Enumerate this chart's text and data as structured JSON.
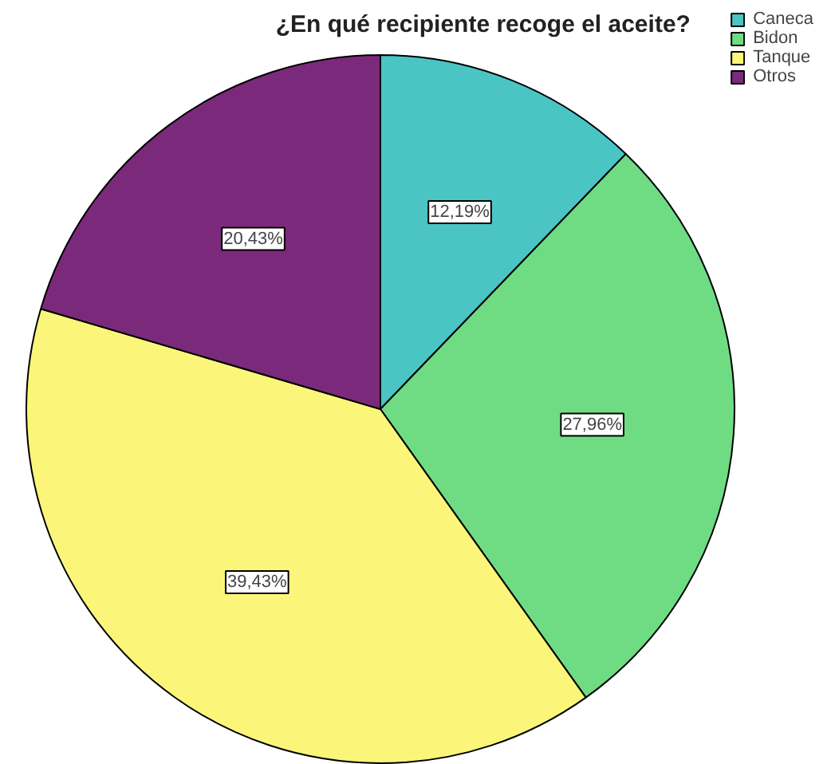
{
  "chart_data": {
    "type": "pie",
    "title": "¿En qué recipiente recoge el aceite?",
    "categories": [
      "Caneca",
      "Bidon",
      "Tanque",
      "Otros"
    ],
    "values": [
      12.19,
      27.96,
      39.43,
      20.43
    ],
    "colors": [
      "#4bc4c4",
      "#6fdc84",
      "#fbf679",
      "#7b2a7b"
    ],
    "value_labels": [
      "12,19%",
      "27,96%",
      "39,43%",
      "20,43%"
    ],
    "legend": "top right"
  }
}
